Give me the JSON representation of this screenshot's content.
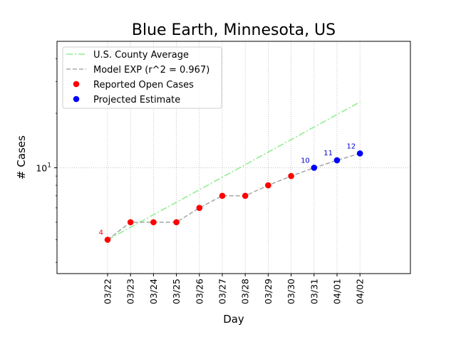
{
  "chart_data": {
    "type": "line",
    "title": "Blue Earth, Minnesota, US",
    "xlabel": "Day",
    "ylabel": "# Cases",
    "yscale": "log",
    "ylim": [
      2.6,
      50
    ],
    "x": [
      "03/22",
      "03/23",
      "03/24",
      "03/25",
      "03/26",
      "03/27",
      "03/28",
      "03/29",
      "03/30",
      "03/31",
      "04/01",
      "04/02"
    ],
    "ytick_labels": [
      {
        "value": 10,
        "base": "10",
        "exp": "1"
      }
    ],
    "grid": true,
    "legend_position": "top-left",
    "series": [
      {
        "name": "U.S. County Average",
        "style": "dash-dot",
        "color": "#90ee90",
        "values": [
          4,
          4.69,
          5.5,
          6.45,
          7.56,
          8.87,
          10.4,
          12.2,
          14.3,
          16.8,
          19.7,
          23.1
        ]
      },
      {
        "name": "Model EXP (r^2 = 0.967)",
        "style": "dashed",
        "color": "#aaaaaa",
        "values": [
          4,
          5,
          5,
          5,
          6,
          7,
          7,
          8,
          9,
          10,
          11,
          12
        ]
      },
      {
        "name": "Reported Open Cases",
        "style": "marker",
        "color": "#ff0000",
        "values": [
          4,
          5,
          5,
          5,
          6,
          7,
          7,
          8,
          9,
          null,
          null,
          null
        ]
      },
      {
        "name": "Projected Estimate",
        "style": "marker",
        "color": "#0000ff",
        "values": [
          null,
          null,
          null,
          null,
          null,
          null,
          null,
          null,
          null,
          10,
          11,
          12
        ]
      }
    ],
    "annotations": [
      {
        "x": "03/22",
        "text": "4",
        "color": "#ff0000"
      },
      {
        "x": "03/31",
        "text": "10",
        "color": "#0000cd"
      },
      {
        "x": "04/01",
        "text": "11",
        "color": "#0000cd"
      },
      {
        "x": "04/02",
        "text": "12",
        "color": "#0000cd"
      }
    ]
  }
}
